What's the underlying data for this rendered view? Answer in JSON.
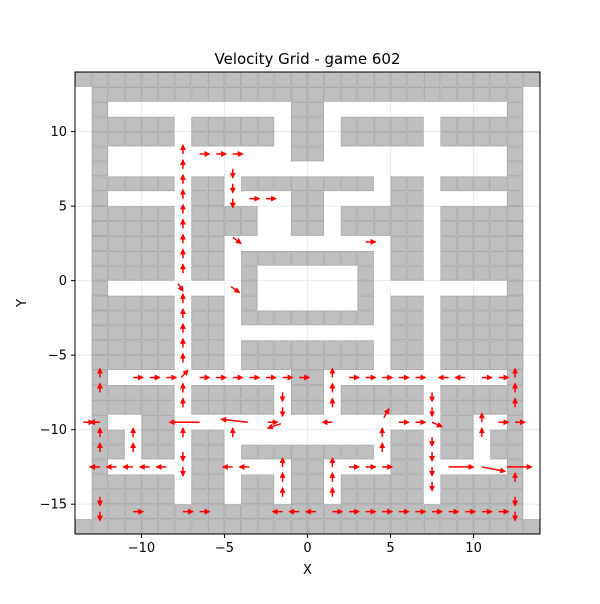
{
  "chart_data": {
    "type": "quiver",
    "title": "Velocity Grid - game 602",
    "xlabel": "X",
    "ylabel": "Y",
    "xlim": [
      -14,
      14
    ],
    "ylim": [
      -17,
      14
    ],
    "xticks": [
      -10,
      -5,
      0,
      5,
      10
    ],
    "yticks": [
      -15,
      -10,
      -5,
      0,
      5,
      10
    ],
    "grid": true,
    "colors": {
      "wall_fill": "#bfbfbf",
      "wall_edge": "#a6a6a6",
      "arrow": "#ff0000",
      "grid": "#e6e6e6"
    },
    "walls": [
      {
        "x": -13,
        "y": -16,
        "w": 1,
        "h": 29
      },
      {
        "x": -14,
        "y": -17,
        "w": 28,
        "h": 1
      },
      {
        "x": -14,
        "y": 13,
        "w": 28,
        "h": 1
      },
      {
        "x": -12,
        "y": 12,
        "w": 24,
        "h": 1
      },
      {
        "x": -12,
        "y": -16,
        "w": 24,
        "h": 1
      },
      {
        "x": 12,
        "y": -16,
        "w": 1,
        "h": 29
      },
      {
        "x": -1,
        "y": 8,
        "w": 2,
        "h": 4
      },
      {
        "x": -12,
        "y": 9,
        "w": 4,
        "h": 2
      },
      {
        "x": -7,
        "y": 9,
        "w": 5,
        "h": 2
      },
      {
        "x": 2,
        "y": 9,
        "w": 5,
        "h": 2
      },
      {
        "x": 8,
        "y": 9,
        "w": 4,
        "h": 2
      },
      {
        "x": -12,
        "y": 6,
        "w": 4,
        "h": 1
      },
      {
        "x": 8,
        "y": 6,
        "w": 4,
        "h": 1
      },
      {
        "x": -7,
        "y": 0,
        "w": 2,
        "h": 7
      },
      {
        "x": 5,
        "y": 0,
        "w": 2,
        "h": 7
      },
      {
        "x": -4,
        "y": 6,
        "w": 8,
        "h": 1
      },
      {
        "x": -1,
        "y": 3,
        "w": 2,
        "h": 3
      },
      {
        "x": -5,
        "y": 3,
        "w": 2,
        "h": 2
      },
      {
        "x": 2,
        "y": 3,
        "w": 3,
        "h": 2
      },
      {
        "x": -13,
        "y": 0,
        "w": 5,
        "h": 5
      },
      {
        "x": 8,
        "y": 0,
        "w": 5,
        "h": 5
      },
      {
        "x": -4,
        "y": 1,
        "w": 8,
        "h": 1
      },
      {
        "x": -4,
        "y": -3,
        "w": 1,
        "h": 4
      },
      {
        "x": 3,
        "y": -3,
        "w": 1,
        "h": 4
      },
      {
        "x": -3,
        "y": -3,
        "w": 6,
        "h": 1
      },
      {
        "x": -13,
        "y": -6,
        "w": 5,
        "h": 5
      },
      {
        "x": 8,
        "y": -6,
        "w": 5,
        "h": 5
      },
      {
        "x": -7,
        "y": -6,
        "w": 2,
        "h": 5
      },
      {
        "x": 5,
        "y": -6,
        "w": 2,
        "h": 5
      },
      {
        "x": -4,
        "y": -6,
        "w": 8,
        "h": 2
      },
      {
        "x": -1,
        "y": -9,
        "w": 2,
        "h": 3
      },
      {
        "x": -12,
        "y": -9,
        "w": 4,
        "h": 2
      },
      {
        "x": -7,
        "y": -9,
        "w": 5,
        "h": 2
      },
      {
        "x": 2,
        "y": -9,
        "w": 5,
        "h": 2
      },
      {
        "x": 8,
        "y": -9,
        "w": 4,
        "h": 2
      },
      {
        "x": -10,
        "y": -12,
        "w": 2,
        "h": 3
      },
      {
        "x": 8,
        "y": -12,
        "w": 2,
        "h": 3
      },
      {
        "x": -12,
        "y": -12,
        "w": 1,
        "h": 2
      },
      {
        "x": 11,
        "y": -12,
        "w": 1,
        "h": 2
      },
      {
        "x": -7,
        "y": -15,
        "w": 2,
        "h": 5
      },
      {
        "x": 5,
        "y": -15,
        "w": 2,
        "h": 5
      },
      {
        "x": -4,
        "y": -12,
        "w": 8,
        "h": 1
      },
      {
        "x": -1,
        "y": -15,
        "w": 2,
        "h": 3
      },
      {
        "x": -12,
        "y": -15,
        "w": 4,
        "h": 2
      },
      {
        "x": 8,
        "y": -15,
        "w": 4,
        "h": 2
      },
      {
        "x": -4,
        "y": -15,
        "w": 2,
        "h": 2
      },
      {
        "x": 2,
        "y": -15,
        "w": 3,
        "h": 2
      }
    ],
    "vectors": [
      {
        "x": -7.5,
        "y": 8.5,
        "dx": 0,
        "dy": 0.6
      },
      {
        "x": -6.5,
        "y": 8.5,
        "dx": 0.6,
        "dy": 0
      },
      {
        "x": -5.5,
        "y": 8.5,
        "dx": 0.6,
        "dy": 0
      },
      {
        "x": -4.5,
        "y": 8.5,
        "dx": 0.6,
        "dy": 0
      },
      {
        "x": -7.5,
        "y": 7.5,
        "dx": 0,
        "dy": 0.6
      },
      {
        "x": -7.5,
        "y": 6.5,
        "dx": 0,
        "dy": 0.6
      },
      {
        "x": -7.5,
        "y": 5.5,
        "dx": 0,
        "dy": 0.6
      },
      {
        "x": -7.5,
        "y": 4.5,
        "dx": 0,
        "dy": 0.6
      },
      {
        "x": -7.5,
        "y": 3.5,
        "dx": 0,
        "dy": 0.6
      },
      {
        "x": -7.5,
        "y": 2.5,
        "dx": 0,
        "dy": 0.6
      },
      {
        "x": -7.5,
        "y": 1.5,
        "dx": 0,
        "dy": 0.6
      },
      {
        "x": -7.5,
        "y": 0.5,
        "dx": 0,
        "dy": 0.6
      },
      {
        "x": -4.5,
        "y": 7.5,
        "dx": 0,
        "dy": -0.6
      },
      {
        "x": -4.5,
        "y": 6.5,
        "dx": 0,
        "dy": -0.6
      },
      {
        "x": -4.5,
        "y": 5.5,
        "dx": 0,
        "dy": -0.6
      },
      {
        "x": -3.5,
        "y": 5.5,
        "dx": 0.6,
        "dy": 0
      },
      {
        "x": -2.5,
        "y": 5.5,
        "dx": 0.6,
        "dy": 0
      },
      {
        "x": -4.5,
        "y": 2.9,
        "dx": 0.5,
        "dy": -0.4
      },
      {
        "x": 3.5,
        "y": 2.6,
        "dx": 0.6,
        "dy": 0
      },
      {
        "x": -7.8,
        "y": -0.2,
        "dx": 0.3,
        "dy": -0.5
      },
      {
        "x": -4.6,
        "y": -0.4,
        "dx": 0.5,
        "dy": -0.4
      },
      {
        "x": -7.5,
        "y": -1.5,
        "dx": 0,
        "dy": 0.6
      },
      {
        "x": -7.5,
        "y": -2.5,
        "dx": 0,
        "dy": 0.6
      },
      {
        "x": -7.5,
        "y": -3.5,
        "dx": 0,
        "dy": 0.6
      },
      {
        "x": -7.5,
        "y": -4.5,
        "dx": 0,
        "dy": 0.6
      },
      {
        "x": -7.5,
        "y": -5.5,
        "dx": 0,
        "dy": 0.6
      },
      {
        "x": -7.6,
        "y": -6.5,
        "dx": 0.4,
        "dy": 0.5
      },
      {
        "x": -12.5,
        "y": -6.5,
        "dx": 0,
        "dy": 0.6
      },
      {
        "x": -12.5,
        "y": -7.5,
        "dx": 0,
        "dy": 0.6
      },
      {
        "x": -10.5,
        "y": -6.5,
        "dx": 0.6,
        "dy": 0
      },
      {
        "x": -9.5,
        "y": -6.5,
        "dx": 0.6,
        "dy": 0
      },
      {
        "x": -8.5,
        "y": -6.5,
        "dx": 0.6,
        "dy": 0
      },
      {
        "x": -7.5,
        "y": -7.5,
        "dx": 0,
        "dy": 0.6
      },
      {
        "x": -7.5,
        "y": -8.5,
        "dx": 0,
        "dy": 0.6
      },
      {
        "x": -6.5,
        "y": -6.5,
        "dx": 0.6,
        "dy": 0
      },
      {
        "x": -5.5,
        "y": -6.5,
        "dx": 0.6,
        "dy": 0
      },
      {
        "x": -4.5,
        "y": -6.5,
        "dx": 0.6,
        "dy": 0
      },
      {
        "x": -3.5,
        "y": -6.5,
        "dx": 0.6,
        "dy": 0
      },
      {
        "x": -2.5,
        "y": -6.5,
        "dx": 0.6,
        "dy": 0
      },
      {
        "x": -1.5,
        "y": -6.5,
        "dx": 0.6,
        "dy": 0
      },
      {
        "x": -1.5,
        "y": -7.5,
        "dx": 0,
        "dy": -0.6
      },
      {
        "x": -1.5,
        "y": -8.5,
        "dx": 0,
        "dy": -0.6
      },
      {
        "x": -0.5,
        "y": -6.5,
        "dx": 0.6,
        "dy": 0
      },
      {
        "x": 1.5,
        "y": -6.5,
        "dx": 0,
        "dy": 0.6
      },
      {
        "x": 1.5,
        "y": -7.5,
        "dx": 0,
        "dy": 0.6
      },
      {
        "x": 1.5,
        "y": -8.5,
        "dx": 0,
        "dy": 0.6
      },
      {
        "x": 2.5,
        "y": -6.5,
        "dx": 0.6,
        "dy": 0
      },
      {
        "x": 3.5,
        "y": -6.5,
        "dx": 0.6,
        "dy": 0
      },
      {
        "x": 4.5,
        "y": -6.5,
        "dx": 0.6,
        "dy": 0
      },
      {
        "x": 5.5,
        "y": -6.5,
        "dx": 0.6,
        "dy": 0
      },
      {
        "x": 6.5,
        "y": -6.5,
        "dx": 0.6,
        "dy": 0
      },
      {
        "x": 8.5,
        "y": -6.5,
        "dx": -0.6,
        "dy": 0
      },
      {
        "x": 9.5,
        "y": -6.5,
        "dx": -0.6,
        "dy": 0
      },
      {
        "x": 10.5,
        "y": -6.5,
        "dx": 0.6,
        "dy": 0
      },
      {
        "x": 11.5,
        "y": -6.5,
        "dx": 0.6,
        "dy": 0
      },
      {
        "x": 12.5,
        "y": -6.5,
        "dx": 0,
        "dy": 0.6
      },
      {
        "x": 12.5,
        "y": -7.5,
        "dx": 0,
        "dy": 0.6
      },
      {
        "x": 12.5,
        "y": -8.5,
        "dx": 0,
        "dy": 0.6
      },
      {
        "x": 7.5,
        "y": -7.5,
        "dx": 0,
        "dy": -0.6
      },
      {
        "x": 7.5,
        "y": -8.5,
        "dx": 0,
        "dy": -0.6
      },
      {
        "x": -13.5,
        "y": -9.5,
        "dx": 0.6,
        "dy": 0
      },
      {
        "x": -12.5,
        "y": -9.5,
        "dx": -0.6,
        "dy": 0
      },
      {
        "x": -12.5,
        "y": -10.5,
        "dx": 0,
        "dy": 0.6
      },
      {
        "x": -12.5,
        "y": -11.5,
        "dx": 0,
        "dy": 0.6
      },
      {
        "x": -10.5,
        "y": -10.5,
        "dx": 0,
        "dy": 0.6
      },
      {
        "x": -10.5,
        "y": -11.5,
        "dx": 0,
        "dy": 0.6
      },
      {
        "x": -6.5,
        "y": -9.5,
        "dx": -1.8,
        "dy": 0
      },
      {
        "x": -3.6,
        "y": -9.5,
        "dx": -1.6,
        "dy": 0.2
      },
      {
        "x": -2.4,
        "y": -9.5,
        "dx": 0.6,
        "dy": 0
      },
      {
        "x": -1.6,
        "y": -9.6,
        "dx": -0.8,
        "dy": -0.3
      },
      {
        "x": -7.5,
        "y": -10.5,
        "dx": 0,
        "dy": 0.6
      },
      {
        "x": -7.5,
        "y": -11.5,
        "dx": 0,
        "dy": -0.6
      },
      {
        "x": -7.5,
        "y": -12.5,
        "dx": 0,
        "dy": -0.6
      },
      {
        "x": -4.5,
        "y": -10.5,
        "dx": 0,
        "dy": 0.6
      },
      {
        "x": 1.5,
        "y": -9.5,
        "dx": -0.6,
        "dy": 0
      },
      {
        "x": 4.5,
        "y": -10.5,
        "dx": 0,
        "dy": 0.6
      },
      {
        "x": 4.5,
        "y": -11.5,
        "dx": 0,
        "dy": 0.6
      },
      {
        "x": 4.6,
        "y": -9.2,
        "dx": 0.3,
        "dy": 0.6
      },
      {
        "x": 5.5,
        "y": -9.5,
        "dx": 0.6,
        "dy": 0
      },
      {
        "x": 6.5,
        "y": -9.5,
        "dx": 0.6,
        "dy": 0
      },
      {
        "x": 7.5,
        "y": -9.5,
        "dx": 0.6,
        "dy": -0.3
      },
      {
        "x": 10.5,
        "y": -9.5,
        "dx": 0,
        "dy": 0.6
      },
      {
        "x": 10.5,
        "y": -10.5,
        "dx": 0,
        "dy": 0.6
      },
      {
        "x": 11.5,
        "y": -9.5,
        "dx": 0.6,
        "dy": 0
      },
      {
        "x": 12.5,
        "y": -9.5,
        "dx": 0.6,
        "dy": 0
      },
      {
        "x": 7.5,
        "y": -10.5,
        "dx": 0,
        "dy": -0.6
      },
      {
        "x": 7.5,
        "y": -11.5,
        "dx": 0,
        "dy": -0.6
      },
      {
        "x": 7.5,
        "y": -12.5,
        "dx": 0,
        "dy": -0.6
      },
      {
        "x": 7.5,
        "y": -13.5,
        "dx": 0,
        "dy": -0.6
      },
      {
        "x": -12.5,
        "y": -12.5,
        "dx": -0.6,
        "dy": 0
      },
      {
        "x": -11.5,
        "y": -12.5,
        "dx": -0.6,
        "dy": 0
      },
      {
        "x": -10.5,
        "y": -12.5,
        "dx": -0.6,
        "dy": 0
      },
      {
        "x": -9.5,
        "y": -12.5,
        "dx": -0.6,
        "dy": 0
      },
      {
        "x": -8.5,
        "y": -12.5,
        "dx": -0.6,
        "dy": 0
      },
      {
        "x": -4.5,
        "y": -12.5,
        "dx": -0.6,
        "dy": 0
      },
      {
        "x": -3.5,
        "y": -12.5,
        "dx": -0.6,
        "dy": 0
      },
      {
        "x": -1.5,
        "y": -12.5,
        "dx": 0,
        "dy": 0.6
      },
      {
        "x": -1.5,
        "y": -13.5,
        "dx": 0,
        "dy": 0.6
      },
      {
        "x": -1.5,
        "y": -14.5,
        "dx": 0,
        "dy": 0.6
      },
      {
        "x": 1.5,
        "y": -12.5,
        "dx": 0,
        "dy": 0.6
      },
      {
        "x": 1.5,
        "y": -13.5,
        "dx": 0,
        "dy": 0.6
      },
      {
        "x": 1.5,
        "y": -14.5,
        "dx": 0,
        "dy": 0.6
      },
      {
        "x": 2.5,
        "y": -12.5,
        "dx": 0.6,
        "dy": 0
      },
      {
        "x": 3.5,
        "y": -12.5,
        "dx": 0.6,
        "dy": 0
      },
      {
        "x": 4.5,
        "y": -12.5,
        "dx": 0.6,
        "dy": 0
      },
      {
        "x": 8.5,
        "y": -12.5,
        "dx": 1.5,
        "dy": 0
      },
      {
        "x": 10.5,
        "y": -12.5,
        "dx": 1.4,
        "dy": -0.3
      },
      {
        "x": 12.0,
        "y": -12.5,
        "dx": 1.5,
        "dy": 0
      },
      {
        "x": 12.5,
        "y": -13.5,
        "dx": 0,
        "dy": 0.6
      },
      {
        "x": 12.5,
        "y": -14.5,
        "dx": 0,
        "dy": -0.6
      },
      {
        "x": 12.5,
        "y": -15.5,
        "dx": 0,
        "dy": -0.6
      },
      {
        "x": -12.5,
        "y": -14.5,
        "dx": 0,
        "dy": -0.6
      },
      {
        "x": -12.5,
        "y": -15.5,
        "dx": 0,
        "dy": -0.6
      },
      {
        "x": -10.5,
        "y": -15.5,
        "dx": 0.6,
        "dy": 0
      },
      {
        "x": -7.5,
        "y": -15.5,
        "dx": 0.6,
        "dy": 0
      },
      {
        "x": -6.5,
        "y": -15.5,
        "dx": 0.6,
        "dy": 0
      },
      {
        "x": -1.5,
        "y": -15.5,
        "dx": -0.6,
        "dy": 0
      },
      {
        "x": -0.5,
        "y": -15.5,
        "dx": -0.6,
        "dy": 0
      },
      {
        "x": 0.5,
        "y": -15.5,
        "dx": -0.6,
        "dy": 0
      },
      {
        "x": 1.5,
        "y": -15.5,
        "dx": 0.6,
        "dy": 0
      },
      {
        "x": 2.5,
        "y": -15.5,
        "dx": 0.6,
        "dy": 0
      },
      {
        "x": 3.5,
        "y": -15.5,
        "dx": 0.6,
        "dy": 0
      },
      {
        "x": 4.5,
        "y": -15.5,
        "dx": 0.6,
        "dy": 0
      },
      {
        "x": 5.5,
        "y": -15.5,
        "dx": 0.6,
        "dy": 0
      },
      {
        "x": 6.5,
        "y": -15.5,
        "dx": 0.6,
        "dy": 0
      },
      {
        "x": 7.5,
        "y": -15.5,
        "dx": 0.6,
        "dy": 0
      },
      {
        "x": 8.5,
        "y": -15.5,
        "dx": 0.6,
        "dy": 0
      },
      {
        "x": 9.5,
        "y": -15.5,
        "dx": 0.6,
        "dy": 0
      },
      {
        "x": 10.5,
        "y": -15.5,
        "dx": 0.6,
        "dy": 0
      },
      {
        "x": 11.5,
        "y": -15.5,
        "dx": 0.6,
        "dy": 0
      }
    ]
  }
}
